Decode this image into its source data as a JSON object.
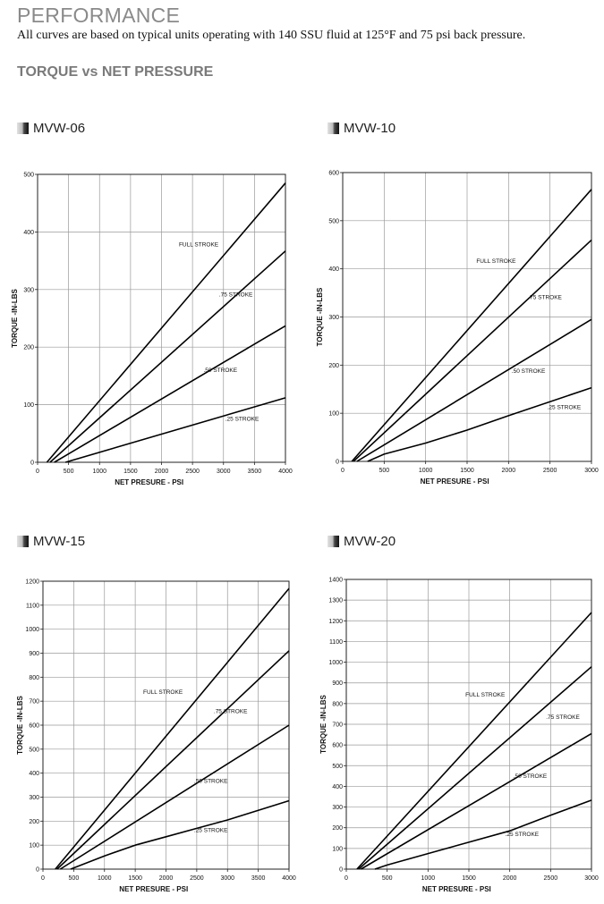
{
  "page": {
    "title": "PERFORMANCE",
    "subtitle": "All curves are based on typical units operating with 140 SSU fluid at 125°F and 75 psi back pressure.",
    "section_title": "TORQUE vs NET PRESSURE"
  },
  "chart_data": [
    {
      "type": "line",
      "title": "MVW-06",
      "xlabel": "NET PRESURE - PSI",
      "ylabel": "TORQUE -IN-LBS",
      "xlim": [
        0,
        4000
      ],
      "ylim": [
        0,
        500
      ],
      "xticks": [
        0,
        500,
        1000,
        1500,
        2000,
        2500,
        3000,
        3500,
        4000
      ],
      "yticks": [
        0,
        100,
        200,
        300,
        400,
        500
      ],
      "grid": true,
      "series": [
        {
          "name": "FULL STROKE",
          "x": [
            150,
            4000
          ],
          "y": [
            0,
            485
          ]
        },
        {
          "name": ".75 STROKE",
          "x": [
            200,
            4000
          ],
          "y": [
            0,
            367
          ]
        },
        {
          "name": ".50 STROKE",
          "x": [
            270,
            4000
          ],
          "y": [
            0,
            237
          ]
        },
        {
          "name": ".25 STROKE",
          "x": [
            450,
            4000
          ],
          "y": [
            0,
            112
          ]
        }
      ],
      "labels": [
        {
          "text": "FULL STROKE",
          "x": 2600,
          "y": 375
        },
        {
          "text": ".75 STROKE",
          "x": 3200,
          "y": 288
        },
        {
          "text": ".50 STROKE",
          "x": 2950,
          "y": 157
        },
        {
          "text": ".25 STROKE",
          "x": 3300,
          "y": 72
        }
      ]
    },
    {
      "type": "line",
      "title": "MVW-10",
      "xlabel": "NET PRESURE - PSI",
      "ylabel": "TORQUE -IN-LBS",
      "xlim": [
        0,
        3000
      ],
      "ylim": [
        0,
        600
      ],
      "xticks": [
        0,
        500,
        1000,
        1500,
        2000,
        2500,
        3000
      ],
      "yticks": [
        0,
        100,
        200,
        300,
        400,
        500,
        600
      ],
      "grid": true,
      "series": [
        {
          "name": "FULL STROKE",
          "x": [
            110,
            3000
          ],
          "y": [
            0,
            565
          ]
        },
        {
          "name": ".75 STROKE",
          "x": [
            130,
            3000
          ],
          "y": [
            0,
            460
          ]
        },
        {
          "name": ".50 STROKE",
          "x": [
            170,
            3000
          ],
          "y": [
            0,
            295
          ]
        },
        {
          "name": ".25 STROKE",
          "x": [
            300,
            500,
            1000,
            1500,
            2000,
            3000
          ],
          "y": [
            0,
            15,
            38,
            65,
            95,
            153
          ]
        }
      ],
      "labels": [
        {
          "text": "FULL STROKE",
          "x": 1850,
          "y": 412
        },
        {
          "text": ".75 STROKE",
          "x": 2440,
          "y": 337
        },
        {
          "text": ".50 STROKE",
          "x": 2240,
          "y": 184
        },
        {
          "text": ".25 STROKE",
          "x": 2670,
          "y": 109
        }
      ]
    },
    {
      "type": "line",
      "title": "MVW-15",
      "xlabel": "NET PRESURE - PSI",
      "ylabel": "TORQUE -IN-LBS",
      "xlim": [
        0,
        4000
      ],
      "ylim": [
        0,
        1200
      ],
      "xticks": [
        0,
        500,
        1000,
        1500,
        2000,
        2500,
        3000,
        3500,
        4000
      ],
      "yticks": [
        0,
        100,
        200,
        300,
        400,
        500,
        600,
        700,
        800,
        900,
        1000,
        1100,
        1200
      ],
      "grid": true,
      "series": [
        {
          "name": "FULL STROKE",
          "x": [
            200,
            4000
          ],
          "y": [
            0,
            1170
          ]
        },
        {
          "name": ".75 STROKE",
          "x": [
            230,
            4000
          ],
          "y": [
            0,
            910
          ]
        },
        {
          "name": ".50 STROKE",
          "x": [
            280,
            4000
          ],
          "y": [
            0,
            600
          ]
        },
        {
          "name": ".25 STROKE",
          "x": [
            450,
            1000,
            1500,
            2000,
            2500,
            3000,
            4000
          ],
          "y": [
            0,
            55,
            100,
            135,
            170,
            205,
            285
          ]
        }
      ],
      "labels": [
        {
          "text": "FULL STROKE",
          "x": 1950,
          "y": 730
        },
        {
          "text": ".75 STROKE",
          "x": 3050,
          "y": 650
        },
        {
          "text": ".50 STROKE",
          "x": 2730,
          "y": 360
        },
        {
          "text": ".25 STROKE",
          "x": 2730,
          "y": 155
        }
      ]
    },
    {
      "type": "line",
      "title": "MVW-20",
      "xlabel": "NET PRESURE - PSI",
      "ylabel": "TORQUE -IN-LBS",
      "xlim": [
        0,
        3000
      ],
      "ylim": [
        0,
        1400
      ],
      "xticks": [
        0,
        500,
        1000,
        1500,
        2000,
        2500,
        3000
      ],
      "yticks": [
        0,
        100,
        200,
        300,
        400,
        500,
        600,
        700,
        800,
        900,
        1000,
        1100,
        1200,
        1300,
        1400
      ],
      "grid": true,
      "series": [
        {
          "name": "FULL STROKE",
          "x": [
            130,
            3000
          ],
          "y": [
            0,
            1240
          ]
        },
        {
          "name": ".75 STROKE",
          "x": [
            150,
            3000
          ],
          "y": [
            0,
            978
          ]
        },
        {
          "name": ".50 STROKE",
          "x": [
            180,
            3000
          ],
          "y": [
            0,
            655
          ]
        },
        {
          "name": ".25 STROKE",
          "x": [
            350,
            500,
            1000,
            1500,
            2000,
            2500,
            3000
          ],
          "y": [
            0,
            20,
            75,
            130,
            185,
            260,
            333
          ]
        }
      ],
      "labels": [
        {
          "text": "FULL STROKE",
          "x": 1700,
          "y": 835
        },
        {
          "text": ".75 STROKE",
          "x": 2650,
          "y": 725
        },
        {
          "text": ".50 STROKE",
          "x": 2250,
          "y": 440
        },
        {
          "text": ".25 STROKE",
          "x": 2150,
          "y": 160
        }
      ]
    }
  ]
}
